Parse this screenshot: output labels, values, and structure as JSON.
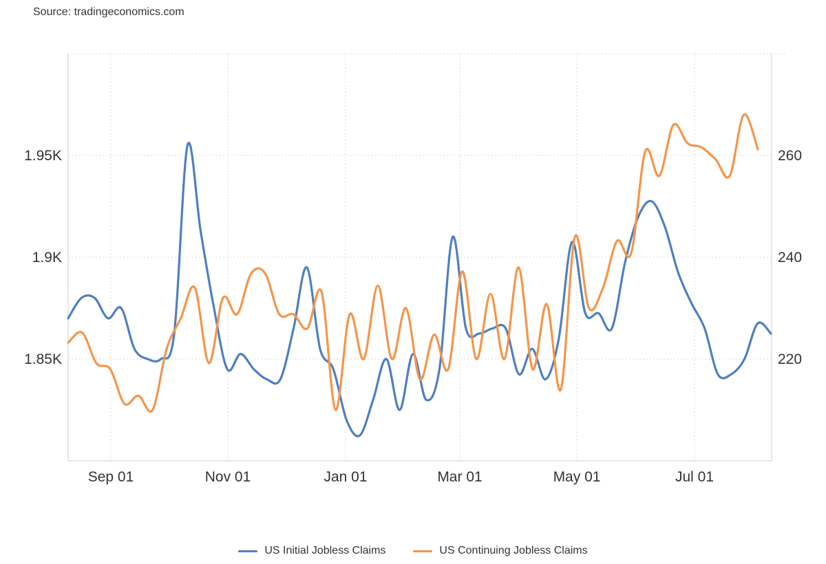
{
  "source": "Source: tradingeconomics.com",
  "chart_data": {
    "type": "line",
    "title": "",
    "x_labels": [
      "Sep 01",
      "Nov 01",
      "Jan 01",
      "Mar 01",
      "May 01",
      "Jul 01"
    ],
    "left_axis": {
      "ticks": [
        "1.85K",
        "1.9K",
        "1.95K"
      ],
      "tick_values": [
        1850,
        1900,
        1950
      ],
      "range": [
        1800,
        2000
      ]
    },
    "right_axis": {
      "ticks": [
        "220",
        "240",
        "260"
      ],
      "tick_values": [
        220,
        240,
        260
      ],
      "range": [
        200,
        280
      ]
    },
    "series": [
      {
        "name": "US Initial Jobless Claims",
        "axis": "right",
        "color": "#4f7fbf",
        "values": [
          228,
          232,
          232,
          228,
          230,
          222,
          220,
          220,
          225,
          262,
          245,
          230,
          218,
          221,
          218,
          216,
          216,
          226,
          238,
          222,
          218,
          208,
          205,
          212,
          220,
          210,
          221,
          212,
          218,
          244,
          226,
          225,
          226,
          226,
          217,
          222,
          216,
          224,
          243,
          229,
          229,
          226,
          239,
          248,
          251,
          246,
          237,
          231,
          226,
          217,
          217,
          220,
          227,
          225
        ]
      },
      {
        "name": "US Continuing Jobless Claims",
        "axis": "left",
        "color": "#f4954a",
        "values": [
          1858,
          1863,
          1848,
          1845,
          1828,
          1832,
          1825,
          1855,
          1870,
          1885,
          1848,
          1880,
          1872,
          1892,
          1892,
          1872,
          1872,
          1865,
          1883,
          1825,
          1872,
          1850,
          1886,
          1850,
          1875,
          1840,
          1862,
          1845,
          1893,
          1850,
          1882,
          1850,
          1895,
          1845,
          1877,
          1835,
          1910,
          1875,
          1885,
          1908,
          1902,
          1952,
          1940,
          1965,
          1956,
          1954,
          1948,
          1940,
          1970,
          1953
        ]
      }
    ]
  }
}
